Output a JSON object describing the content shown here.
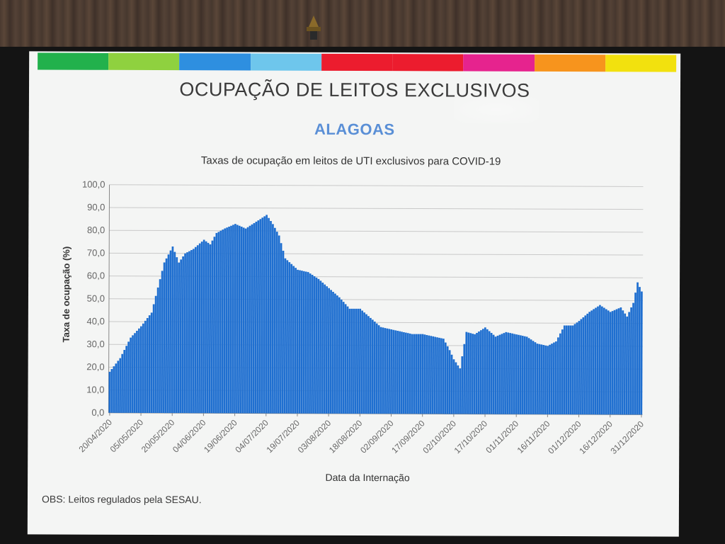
{
  "slide": {
    "title": "OCUPAÇÃO DE LEITOS EXCLUSIVOS",
    "subtitle": "ALAGOAS",
    "note": "OBS: Leitos regulados pela SESAU.",
    "bar_colors": [
      "#22b14c",
      "#8fd13f",
      "#2e8fe0",
      "#6ec6ec",
      "#ec1c2e",
      "#ec1c2e",
      "#e6238e",
      "#f7941d",
      "#f2e10e"
    ]
  },
  "chart_data": {
    "type": "bar",
    "title": "Taxas de ocupação em leitos de UTI exclusivos para COVID-19",
    "xlabel": "Data da Internação",
    "ylabel": "Taxa de ocupação (%)",
    "ylim": [
      0,
      100
    ],
    "yticks": [
      "0,0",
      "10,0",
      "20,0",
      "30,0",
      "40,0",
      "50,0",
      "60,0",
      "70,0",
      "80,0",
      "90,0",
      "100,0"
    ],
    "xticks": [
      "20/04/2020",
      "05/05/2020",
      "20/05/2020",
      "04/06/2020",
      "19/06/2020",
      "04/07/2020",
      "19/07/2020",
      "03/08/2020",
      "18/08/2020",
      "02/09/2020",
      "17/09/2020",
      "02/10/2020",
      "17/10/2020",
      "01/11/2020",
      "16/11/2020",
      "01/12/2020",
      "16/12/2020",
      "31/12/2020"
    ],
    "x_start": "20/04/2020",
    "x_end": "31/12/2020",
    "grid": true,
    "bar_color": "#1f6fd0",
    "series": [
      {
        "points": [
          [
            "20/04/2020",
            18
          ],
          [
            "25/04/2020",
            24
          ],
          [
            "30/04/2020",
            33
          ],
          [
            "05/05/2020",
            38
          ],
          [
            "10/05/2020",
            44
          ],
          [
            "13/05/2020",
            55
          ],
          [
            "16/05/2020",
            66
          ],
          [
            "20/05/2020",
            73
          ],
          [
            "23/05/2020",
            66
          ],
          [
            "26/05/2020",
            70
          ],
          [
            "30/05/2020",
            72
          ],
          [
            "04/06/2020",
            76
          ],
          [
            "07/06/2020",
            74
          ],
          [
            "10/06/2020",
            79
          ],
          [
            "14/06/2020",
            81
          ],
          [
            "19/06/2020",
            83
          ],
          [
            "24/06/2020",
            81
          ],
          [
            "29/06/2020",
            84
          ],
          [
            "04/07/2020",
            87
          ],
          [
            "07/07/2020",
            83
          ],
          [
            "10/07/2020",
            78
          ],
          [
            "13/07/2020",
            68
          ],
          [
            "19/07/2020",
            63
          ],
          [
            "24/07/2020",
            62
          ],
          [
            "29/07/2020",
            59
          ],
          [
            "03/08/2020",
            55
          ],
          [
            "08/08/2020",
            51
          ],
          [
            "13/08/2020",
            46
          ],
          [
            "18/08/2020",
            46
          ],
          [
            "23/08/2020",
            42
          ],
          [
            "28/08/2020",
            38
          ],
          [
            "02/09/2020",
            37
          ],
          [
            "07/09/2020",
            36
          ],
          [
            "12/09/2020",
            35
          ],
          [
            "17/09/2020",
            35
          ],
          [
            "22/09/2020",
            34
          ],
          [
            "27/09/2020",
            33
          ],
          [
            "30/09/2020",
            28
          ],
          [
            "02/10/2020",
            24
          ],
          [
            "05/10/2020",
            20
          ],
          [
            "08/10/2020",
            36
          ],
          [
            "12/10/2020",
            35
          ],
          [
            "17/10/2020",
            38
          ],
          [
            "22/10/2020",
            34
          ],
          [
            "27/10/2020",
            36
          ],
          [
            "01/11/2020",
            35
          ],
          [
            "06/11/2020",
            34
          ],
          [
            "11/11/2020",
            31
          ],
          [
            "16/11/2020",
            30
          ],
          [
            "20/11/2020",
            32
          ],
          [
            "24/11/2020",
            39
          ],
          [
            "28/11/2020",
            39
          ],
          [
            "01/12/2020",
            41
          ],
          [
            "06/12/2020",
            45
          ],
          [
            "11/12/2020",
            48
          ],
          [
            "16/12/2020",
            45
          ],
          [
            "21/12/2020",
            47
          ],
          [
            "24/12/2020",
            43
          ],
          [
            "27/12/2020",
            49
          ],
          [
            "29/12/2020",
            58
          ],
          [
            "31/12/2020",
            54
          ]
        ]
      }
    ]
  }
}
